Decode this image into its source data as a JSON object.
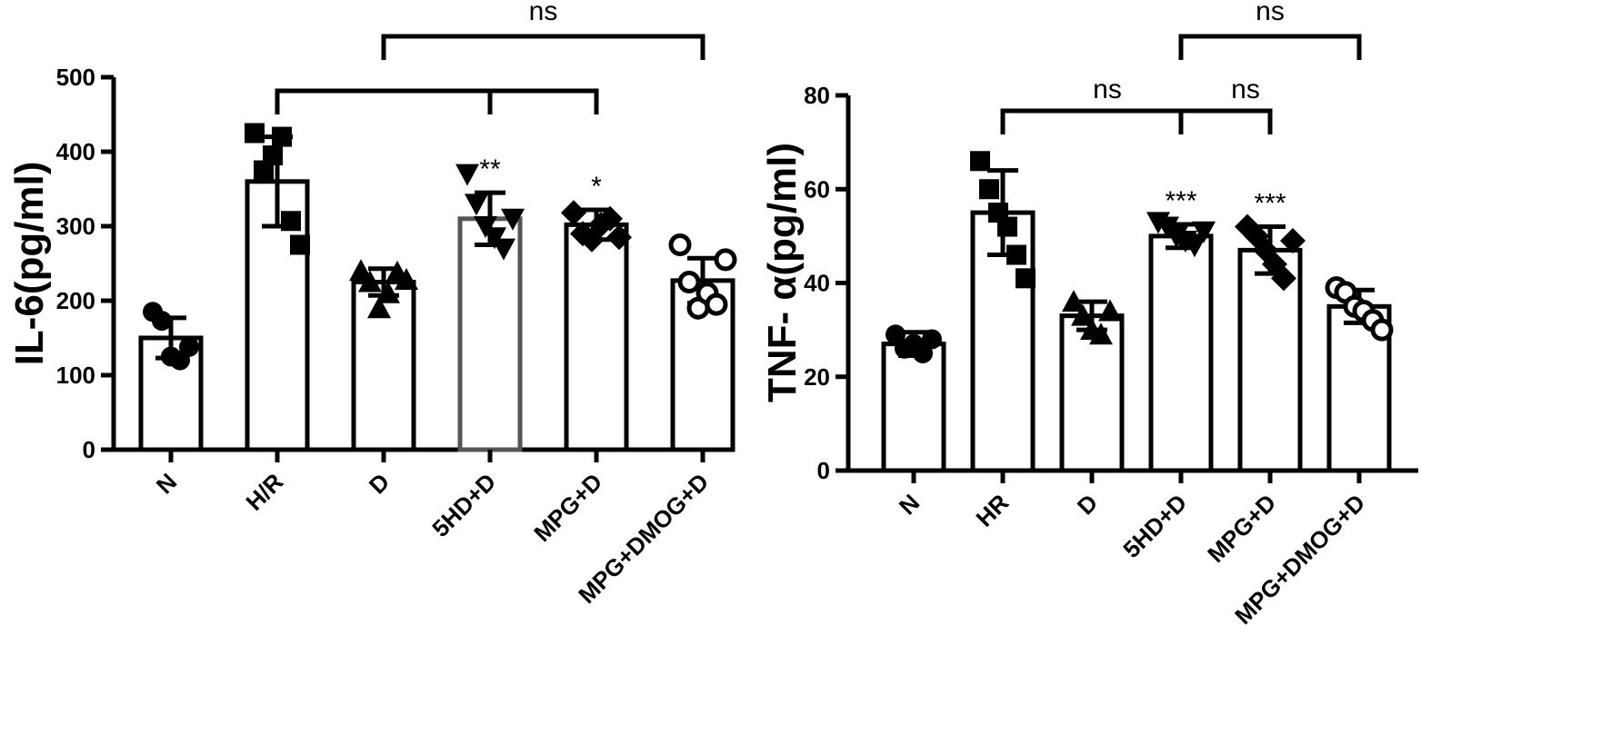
{
  "chart_data": [
    {
      "type": "bar",
      "ylabel": "IL-6(pg/ml)",
      "ylim": [
        0,
        500
      ],
      "yticks": [
        "0",
        "100",
        "200",
        "300",
        "400",
        "500"
      ],
      "categories": [
        "N",
        "H/R",
        "D",
        "5HD+D",
        "MPG+D",
        "MPG+DMOG+D"
      ],
      "values": [
        150,
        360,
        225,
        310,
        302,
        227
      ],
      "errors": [
        27,
        60,
        18,
        35,
        20,
        30
      ],
      "markers": [
        "circle",
        "square",
        "triangle-up",
        "triangle-down",
        "diamond",
        "circle-open"
      ],
      "points": [
        [
          185,
          173,
          125,
          120,
          138
        ],
        [
          425,
          375,
          395,
          420,
          307,
          275
        ],
        [
          240,
          225,
          190,
          210,
          238,
          228
        ],
        [
          370,
          330,
          300,
          285,
          270,
          310
        ],
        [
          318,
          290,
          282,
          302,
          310,
          285
        ],
        [
          275,
          225,
          190,
          210,
          195,
          255
        ]
      ],
      "annotations": [
        "",
        "",
        "",
        "**",
        "*",
        ""
      ],
      "brackets": [
        {
          "label": "",
          "from": 1,
          "to": 4,
          "mid": 3
        },
        {
          "label": "ns",
          "from": 2,
          "to": 5
        }
      ]
    },
    {
      "type": "bar",
      "ylabel": "TNF- α(pg/ml)",
      "ylim": [
        0,
        80
      ],
      "yticks": [
        "0",
        "20",
        "40",
        "60",
        "80"
      ],
      "categories": [
        "N",
        "HR",
        "D",
        "5HD+D",
        "MPG+D",
        "MPG+DMOG+D"
      ],
      "values": [
        27,
        55,
        33,
        50,
        47,
        35
      ],
      "errors": [
        2.5,
        9,
        3,
        2.5,
        5,
        3.5
      ],
      "markers": [
        "circle",
        "square",
        "triangle-up",
        "triangle-down",
        "diamond",
        "circle-open"
      ],
      "points": [
        [
          29,
          26,
          27,
          25,
          28
        ],
        [
          66,
          60,
          55,
          52,
          46,
          41
        ],
        [
          36,
          33,
          30,
          29,
          34
        ],
        [
          53,
          52,
          50,
          49,
          48,
          51
        ],
        [
          52,
          50,
          47,
          44,
          41,
          49
        ],
        [
          39,
          38,
          35,
          34,
          32,
          30
        ]
      ],
      "annotations": [
        "",
        "",
        "",
        "***",
        "***",
        ""
      ],
      "brackets": [
        {
          "label": "ns",
          "from": 1,
          "to": 3
        },
        {
          "label": "ns",
          "from": 3,
          "to": 4
        },
        {
          "label": "ns",
          "from": 3,
          "to": 5
        }
      ]
    }
  ]
}
